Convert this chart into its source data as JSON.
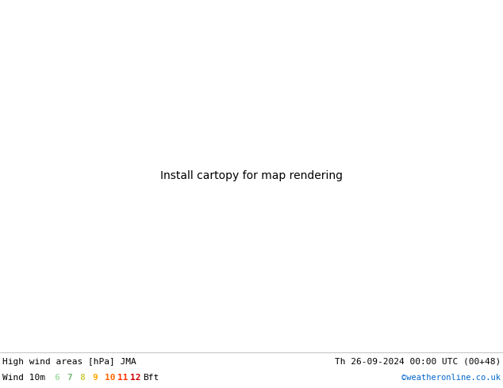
{
  "title_left": "High wind areas [hPa] JMA",
  "title_right": "Th 26-09-2024 00:00 UTC (00+48)",
  "label_left": "Wind 10m",
  "bft_label": "Bft",
  "bft_values": [
    "6",
    "7",
    "8",
    "9",
    "10",
    "11",
    "12"
  ],
  "bft_colors": [
    "#aaddaa",
    "#77bb77",
    "#cccc44",
    "#ffaa00",
    "#ff6600",
    "#ff3300",
    "#cc0000"
  ],
  "copyright": "©weatheronline.co.uk",
  "copyright_color": "#0066cc",
  "sea_color": "#d8d8d8",
  "land_color": "#b8d8a0",
  "figsize": [
    6.34,
    4.9
  ],
  "dpi": 100,
  "lon_min": -95,
  "lon_max": 5,
  "lat_min": -65,
  "lat_max": 25
}
